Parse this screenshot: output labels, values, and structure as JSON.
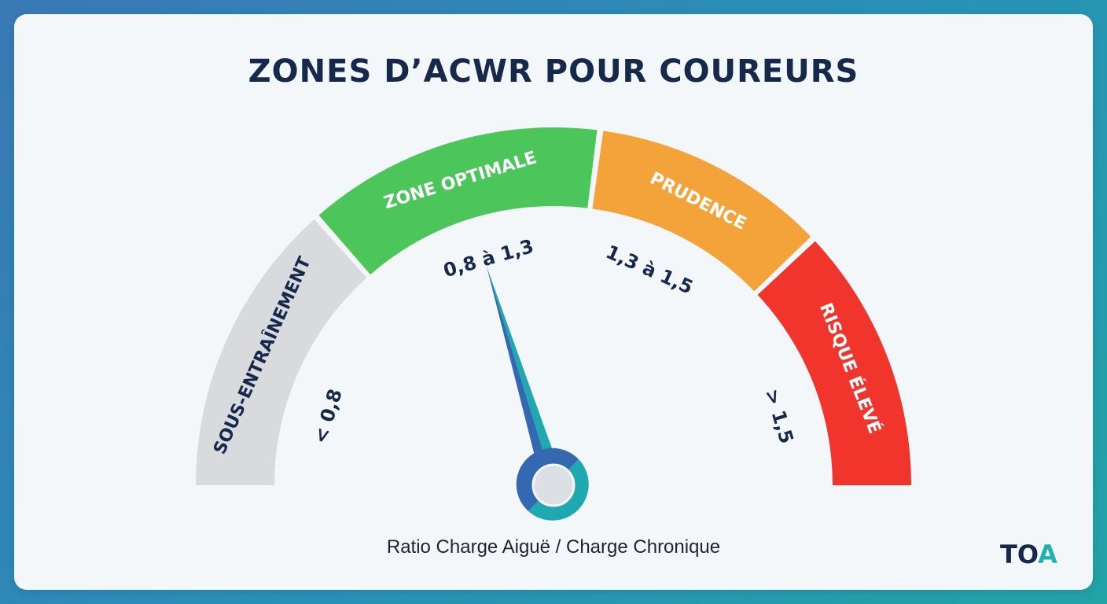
{
  "title": "ZONES D’ACWR POUR COUREURS",
  "caption": "Ratio Charge Aiguë / Charge Chronique",
  "logo": {
    "text_main": "TO",
    "text_accent": "A"
  },
  "chart_data": {
    "type": "gauge",
    "title": "ZONES D’ACWR POUR COUREURS",
    "xlabel": "Ratio Charge Aiguë / Charge Chronique",
    "zones": [
      {
        "name": "SOUS-ENTRAÎNEMENT",
        "range": "< 0,8",
        "color": "#d9dadd",
        "text_color": "#17294a"
      },
      {
        "name": "ZONE OPTIMALE",
        "range": "0,8 à 1,3",
        "color": "#4cc55a",
        "text_color": "#ffffff"
      },
      {
        "name": "PRUDENCE",
        "range": "1,3 à 1,5",
        "color": "#f3a33a",
        "text_color": "#ffffff"
      },
      {
        "name": "RISQUE ÉLEVÉ",
        "range": "> 1,5",
        "color": "#f1352c",
        "text_color": "#ffffff"
      }
    ],
    "needle_value": 1.05,
    "needle_colors": [
      "#3468b0",
      "#1fa8b0"
    ]
  }
}
